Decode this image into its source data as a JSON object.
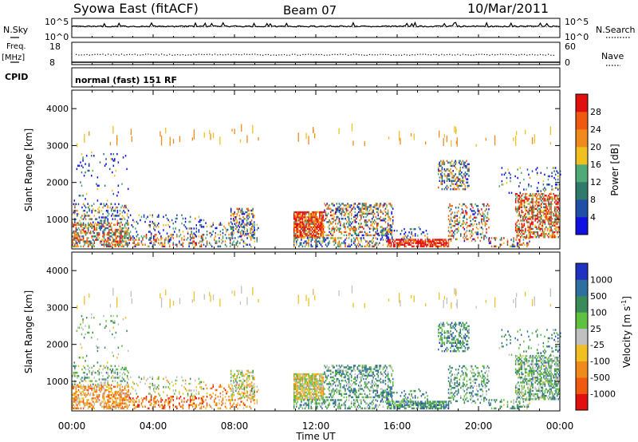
{
  "header": {
    "station": "Syowa East (fitACF)",
    "beam": "Beam 07",
    "date": "10/Mar/2011"
  },
  "sky_panel": {
    "left_label": "N.Sky",
    "right_label": "N.Search",
    "left_ticks": [
      "10^5",
      "10^0"
    ],
    "right_ticks": [
      "10^5",
      "10^0"
    ]
  },
  "freq_panel": {
    "left_label_1": "Freq.",
    "left_label_2": "[MHz]",
    "right_label": "Nave",
    "left_ticks": [
      "18",
      "8"
    ],
    "right_ticks": [
      "60",
      "0"
    ]
  },
  "cpid_panel": {
    "label": "CPID",
    "text": "normal (fast) 151 RF"
  },
  "colors": {
    "power_scale": [
      "#1010e0",
      "#1f4fa6",
      "#2f7a6a",
      "#4faa78",
      "#f0c020",
      "#f08a1a",
      "#f05a10",
      "#e01010"
    ],
    "velocity_scale": [
      "#e01010",
      "#f05a10",
      "#f08a1a",
      "#f0c020",
      "#c0c0c0",
      "#60c040",
      "#3a8a5a",
      "#2f6fa0",
      "#2030c0"
    ]
  },
  "chart_data": [
    {
      "type": "heatmap",
      "quantity": "power",
      "ylabel": "Slant Range [km]",
      "y_ticks": [
        "4000",
        "3000",
        "2000",
        "1000"
      ],
      "ylim": [
        200,
        4500
      ],
      "colorbar_label": "Power [dB]",
      "colorbar_ticks": [
        "28",
        "24",
        "20",
        "16",
        "12",
        "8",
        "4"
      ],
      "colorbar_range": [
        0,
        32
      ],
      "x_ticks": [
        "00:00",
        "04:00",
        "08:00",
        "12:00",
        "16:00",
        "20:00",
        "00:00"
      ],
      "xlim_hours": [
        0,
        24
      ]
    },
    {
      "type": "heatmap",
      "quantity": "velocity",
      "ylabel": "Slant Range [km]",
      "y_ticks": [
        "4000",
        "3000",
        "2000",
        "1000"
      ],
      "ylim": [
        200,
        4500
      ],
      "colorbar_label": "Velocity [m s",
      "colorbar_label_sup": "-1",
      "colorbar_label_end": "]",
      "colorbar_ticks": [
        "1000",
        "500",
        "100",
        "25",
        "-25",
        "-100",
        "-500",
        "-1000"
      ],
      "x_ticks": [
        "00:00",
        "04:00",
        "08:00",
        "12:00",
        "16:00",
        "20:00",
        "00:00"
      ],
      "xlabel": "Time UT",
      "xlim_hours": [
        0,
        24
      ]
    }
  ]
}
